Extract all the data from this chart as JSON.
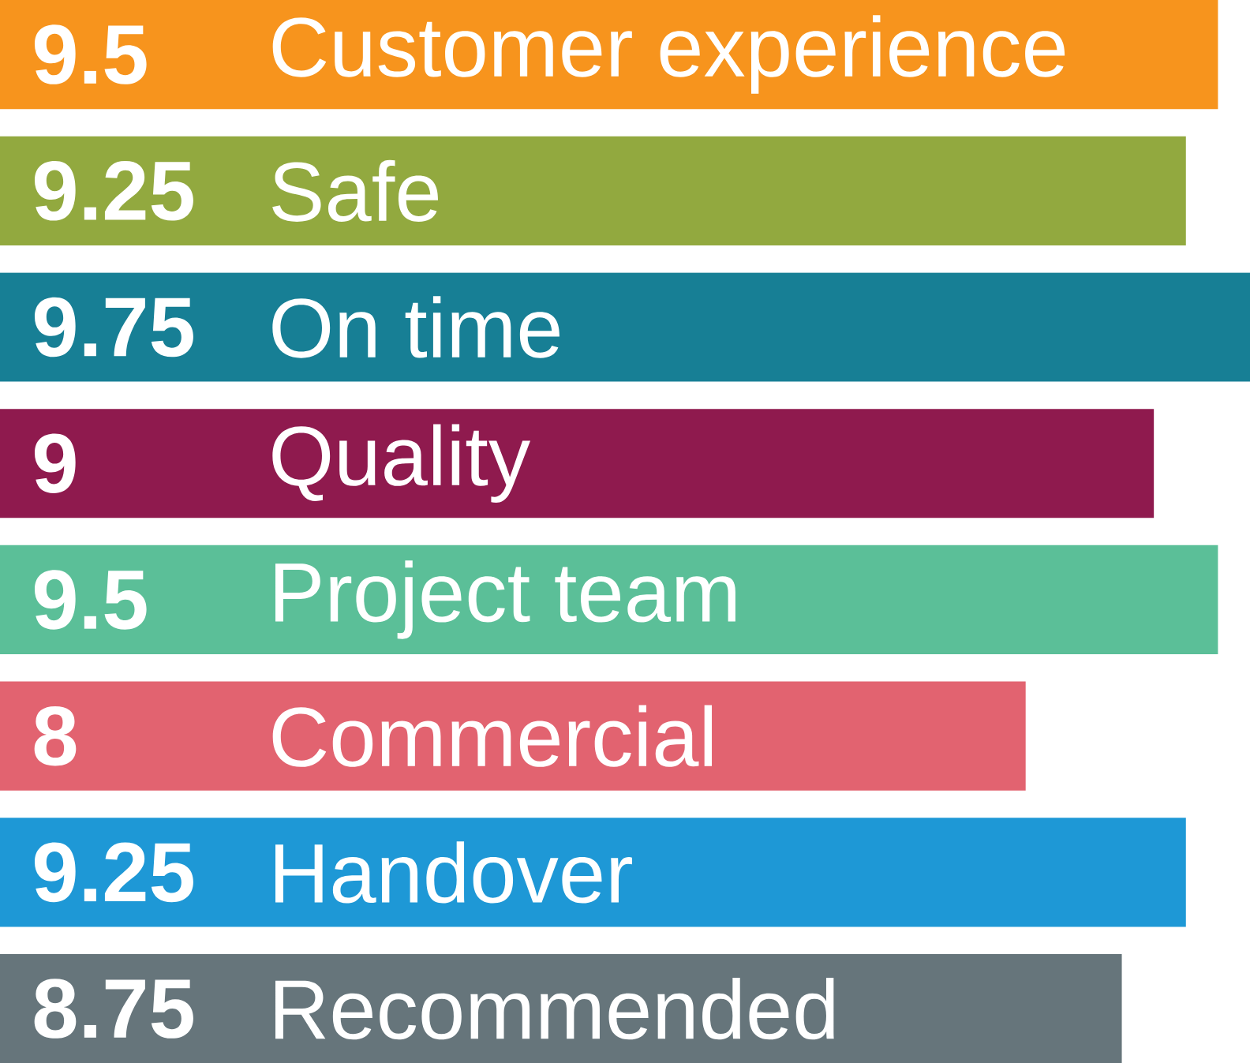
{
  "chart_data": {
    "type": "bar",
    "orientation": "horizontal",
    "categories": [
      "Customer experience",
      "Safe",
      "On time",
      "Quality",
      "Project team",
      "Commercial",
      "Handover",
      "Recommended"
    ],
    "values": [
      9.5,
      9.25,
      9.75,
      9,
      9.5,
      8,
      9.25,
      8.75
    ],
    "colors": [
      "#f7941d",
      "#92a93f",
      "#177f95",
      "#8f1a4e",
      "#5bbf98",
      "#e26370",
      "#1e98d6",
      "#66757b"
    ],
    "data_labels": true
  }
}
